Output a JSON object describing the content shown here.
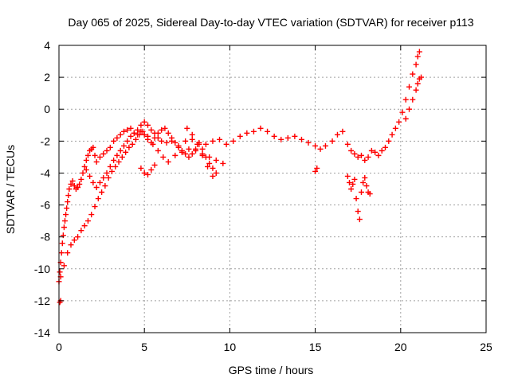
{
  "chart_data": {
    "type": "scatter",
    "title": "Day 065 of 2025, Sidereal Day-to-day VTEC variation (SDTVAR) for receiver p113",
    "xlabel": "GPS time / hours",
    "ylabel": "SDTVAR / TECUs",
    "xlim": [
      0,
      25
    ],
    "ylim": [
      -14,
      4
    ],
    "xticks": [
      "0",
      "5",
      "10",
      "15",
      "20",
      "25"
    ],
    "yticks": [
      "-14",
      "-12",
      "-10",
      "-8",
      "-6",
      "-4",
      "-2",
      "0",
      "2",
      "4"
    ],
    "grid": true,
    "legend": "none",
    "marker": "plus",
    "color": "#ff0000",
    "series": [
      {
        "x": [
          0.0,
          0.05,
          0.1,
          0.15,
          0.2,
          0.25,
          0.3,
          0.35,
          0.4,
          0.45,
          0.5,
          0.55,
          0.6,
          0.7,
          0.8,
          0.9,
          1.0,
          1.1,
          1.2,
          1.3,
          1.4,
          1.5,
          1.6,
          1.7,
          1.8,
          1.9,
          2.0,
          2.1,
          2.2,
          2.4,
          2.6,
          2.8,
          3.0,
          3.2,
          3.4,
          3.6,
          3.8,
          4.0,
          4.2,
          4.4,
          4.6,
          4.8,
          5.0,
          5.2,
          5.4,
          5.6,
          5.8,
          6.0,
          6.3,
          6.6,
          7.0,
          7.4,
          7.8,
          8.2,
          8.6,
          9.0,
          9.4,
          9.8,
          10.2,
          10.6,
          11.0,
          11.4,
          11.8,
          12.2,
          12.6,
          13.0,
          13.4,
          13.8,
          14.2,
          14.6,
          15.0,
          15.3,
          15.6,
          16.0,
          16.3,
          16.6,
          16.9,
          17.1,
          17.3,
          17.5,
          17.7,
          17.9,
          18.1,
          18.3,
          18.5,
          18.7,
          18.9,
          19.1,
          19.3,
          19.5,
          19.7,
          19.9,
          20.1,
          20.3,
          20.5,
          20.7,
          20.9,
          21.0,
          21.1
        ],
        "y": [
          -10.8,
          -10.2,
          -9.6,
          -9.0,
          -8.4,
          -7.9,
          -7.4,
          -7.0,
          -6.6,
          -6.2,
          -5.8,
          -5.4,
          -5.0,
          -4.7,
          -4.5,
          -4.8,
          -5.0,
          -4.9,
          -4.7,
          -4.4,
          -4.0,
          -3.6,
          -3.2,
          -2.9,
          -2.6,
          -2.5,
          -2.4,
          -2.9,
          -3.3,
          -3.0,
          -2.8,
          -2.6,
          -2.4,
          -2.0,
          -1.8,
          -1.6,
          -1.4,
          -1.3,
          -1.2,
          -1.5,
          -1.6,
          -1.0,
          -0.8,
          -1.0,
          -1.3,
          -1.5,
          -1.8,
          -2.0,
          -2.1,
          -2.0,
          -2.3,
          -2.0,
          -1.9,
          -2.1,
          -2.2,
          -2.0,
          -1.9,
          -2.2,
          -2.0,
          -1.7,
          -1.5,
          -1.4,
          -1.2,
          -1.4,
          -1.7,
          -1.9,
          -1.8,
          -1.7,
          -1.9,
          -2.1,
          -2.3,
          -2.5,
          -2.3,
          -2.0,
          -1.6,
          -1.4,
          -2.2,
          -2.6,
          -2.8,
          -3.0,
          -2.9,
          -3.2,
          -3.0,
          -2.6,
          -2.7,
          -2.9,
          -2.6,
          -2.4,
          -2.0,
          -1.6,
          -1.2,
          -0.8,
          -0.2,
          0.6,
          1.4,
          2.2,
          2.8,
          3.3,
          3.6
        ]
      },
      {
        "x": [
          0.1,
          0.3,
          0.5,
          0.7,
          0.9,
          1.1,
          1.3,
          1.5,
          1.7,
          1.9,
          2.1,
          2.3,
          2.5,
          2.7,
          2.9,
          3.1,
          3.3,
          3.5,
          3.7,
          3.9,
          4.1,
          4.3,
          4.5,
          4.7,
          4.9,
          5.2,
          5.5,
          5.8,
          6.1,
          6.4,
          6.8,
          7.2,
          7.6,
          8.0,
          8.4,
          8.8,
          9.2,
          9.6
        ],
        "y": [
          -10.5,
          -9.8,
          -9.0,
          -8.5,
          -8.2,
          -8.0,
          -7.6,
          -7.3,
          -7.0,
          -6.6,
          -6.1,
          -5.6,
          -5.2,
          -4.8,
          -4.3,
          -3.9,
          -3.6,
          -3.3,
          -3.0,
          -2.7,
          -2.4,
          -2.2,
          -1.9,
          -1.6,
          -1.4,
          -1.7,
          -2.2,
          -2.6,
          -3.0,
          -3.3,
          -2.9,
          -2.7,
          -2.5,
          -2.6,
          -2.8,
          -3.0,
          -3.2,
          -3.4
        ]
      },
      {
        "x": [
          1.6,
          1.8,
          2.0,
          2.2,
          2.4,
          2.6,
          2.8,
          3.0,
          3.2,
          3.4,
          3.6,
          3.8,
          4.0,
          4.2,
          4.4,
          4.6,
          4.8,
          5.0,
          5.2,
          5.4,
          5.6,
          5.8,
          6.0,
          6.2,
          6.4,
          6.6,
          6.8,
          7.0,
          7.2,
          7.4,
          7.6,
          7.8,
          8.0,
          8.2,
          8.4,
          8.6,
          8.8,
          9.0,
          9.2
        ],
        "y": [
          -3.8,
          -4.2,
          -4.6,
          -4.9,
          -4.6,
          -4.3,
          -4.0,
          -3.6,
          -3.2,
          -2.9,
          -2.6,
          -2.3,
          -2.0,
          -1.7,
          -1.5,
          -1.3,
          -1.4,
          -1.6,
          -1.9,
          -2.1,
          -1.8,
          -1.5,
          -1.3,
          -1.2,
          -1.5,
          -1.8,
          -2.1,
          -2.4,
          -2.6,
          -2.8,
          -3.0,
          -2.8,
          -2.5,
          -2.2,
          -2.5,
          -3.0,
          -3.4,
          -3.7,
          -4.0
        ]
      },
      {
        "x": [
          7.5,
          7.8,
          8.1,
          8.4,
          8.7,
          9.0
        ],
        "y": [
          -1.2,
          -1.6,
          -2.2,
          -2.9,
          -3.6,
          -4.2
        ]
      },
      {
        "x": [
          4.8,
          5.0,
          5.2,
          5.4,
          5.6
        ],
        "y": [
          -3.7,
          -4.0,
          -4.1,
          -3.8,
          -3.5
        ]
      },
      {
        "x": [
          16.9,
          17.0,
          17.1,
          17.2,
          17.3,
          17.4,
          17.5,
          17.6,
          17.7,
          17.8,
          17.9,
          18.0,
          18.1,
          18.2
        ],
        "y": [
          -4.2,
          -4.6,
          -5.0,
          -4.7,
          -4.4,
          -5.6,
          -6.4,
          -6.9,
          -5.2,
          -4.6,
          -4.3,
          -4.8,
          -5.2,
          -5.3
        ]
      },
      {
        "x": [
          20.3,
          20.5,
          20.7,
          20.9,
          21.0,
          21.1,
          21.2
        ],
        "y": [
          -0.6,
          0.0,
          0.6,
          1.2,
          1.6,
          1.9,
          2.0
        ]
      },
      {
        "x": [
          0.05,
          0.1
        ],
        "y": [
          -12.1,
          -12.0
        ]
      },
      {
        "x": [
          15.0,
          15.1
        ],
        "y": [
          -3.9,
          -3.7
        ]
      }
    ]
  }
}
